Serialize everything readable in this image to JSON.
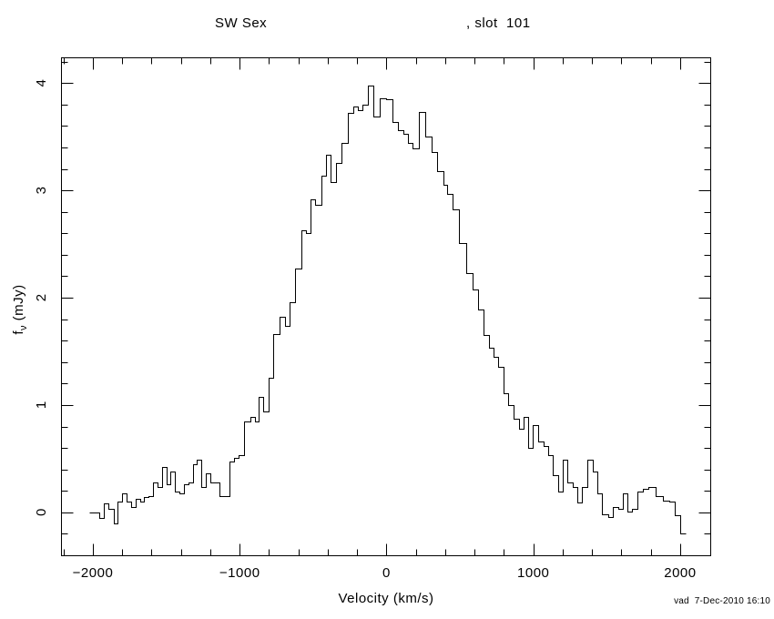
{
  "title": {
    "object": "SW Sex",
    "slot": ", slot  101"
  },
  "stamp": "vad  7-Dec-2010 16:10",
  "axes": {
    "xlabel": "Velocity (km/s)",
    "ylabel_f": "f",
    "ylabel_sub": "ν",
    "ylabel_unit": " (mJy)"
  },
  "chart_data": {
    "type": "line",
    "style": "histogram-step",
    "title": "SW Sex , slot 101",
    "xlabel": "Velocity (km/s)",
    "ylabel": "f_ν (mJy)",
    "line_color": "#000000",
    "background": "#ffffff",
    "grid": false,
    "legend": "none",
    "xlim": [
      -2217,
      2205
    ],
    "ylim": [
      -0.4,
      4.24
    ],
    "x_major_ticks": [
      -2000,
      -1000,
      0,
      1000,
      2000
    ],
    "x_tick_labels": [
      "−2000",
      "−1000",
      "0",
      "1000",
      "2000"
    ],
    "x_minor_step": 200,
    "y_major_ticks": [
      0,
      1,
      2,
      3,
      4
    ],
    "y_tick_labels": [
      "0",
      "1",
      "2",
      "3",
      "4"
    ],
    "y_minor_step": 0.2,
    "x": [
      -2010,
      -1975,
      -1940,
      -1910,
      -1875,
      -1845,
      -1815,
      -1785,
      -1755,
      -1725,
      -1695,
      -1665,
      -1635,
      -1605,
      -1575,
      -1545,
      -1515,
      -1485,
      -1455,
      -1425,
      -1395,
      -1365,
      -1335,
      -1305,
      -1275,
      -1245,
      -1215,
      -1185,
      -1155,
      -1125,
      -1090,
      -1055,
      -1025,
      -990,
      -950,
      -910,
      -885,
      -855,
      -820,
      -790,
      -750,
      -710,
      -675,
      -640,
      -600,
      -565,
      -535,
      -505,
      -465,
      -425,
      -395,
      -365,
      -325,
      -285,
      -245,
      -210,
      -175,
      -150,
      -110,
      -65,
      -25,
      15,
      60,
      100,
      130,
      160,
      200,
      245,
      285,
      325,
      370,
      400,
      430,
      470,
      520,
      565,
      605,
      640,
      685,
      715,
      740,
      780,
      815,
      845,
      880,
      920,
      948,
      980,
      1015,
      1050,
      1085,
      1115,
      1155,
      1185,
      1215,
      1250,
      1283,
      1313,
      1350,
      1388,
      1420,
      1450,
      1490,
      1528,
      1560,
      1595,
      1625,
      1655,
      1690,
      1730,
      1765,
      1800,
      1860,
      1905,
      1945,
      1985,
      2020
    ],
    "y": [
      0.0,
      0.0,
      -0.05,
      0.08,
      0.03,
      -0.1,
      0.1,
      0.18,
      0.1,
      0.05,
      0.13,
      0.1,
      0.14,
      0.15,
      0.28,
      0.24,
      0.42,
      0.26,
      0.38,
      0.19,
      0.18,
      0.26,
      0.28,
      0.45,
      0.49,
      0.24,
      0.36,
      0.28,
      0.28,
      0.15,
      0.15,
      0.47,
      0.51,
      0.53,
      0.85,
      0.89,
      0.85,
      1.08,
      0.94,
      1.25,
      1.66,
      1.82,
      1.74,
      1.96,
      2.27,
      2.63,
      2.6,
      2.92,
      2.87,
      3.14,
      3.33,
      3.08,
      3.26,
      3.44,
      3.72,
      3.78,
      3.75,
      3.8,
      3.98,
      3.69,
      3.86,
      3.85,
      3.64,
      3.56,
      3.53,
      3.44,
      3.39,
      3.73,
      3.5,
      3.36,
      3.18,
      3.05,
      2.97,
      2.82,
      2.51,
      2.23,
      2.08,
      1.89,
      1.65,
      1.53,
      1.45,
      1.36,
      1.11,
      1.0,
      0.87,
      0.78,
      0.89,
      0.6,
      0.81,
      0.66,
      0.62,
      0.53,
      0.35,
      0.19,
      0.49,
      0.28,
      0.24,
      0.09,
      0.24,
      0.49,
      0.38,
      0.18,
      -0.02,
      -0.04,
      0.05,
      0.03,
      0.18,
      0.01,
      0.03,
      0.19,
      0.22,
      0.24,
      0.15,
      0.11,
      0.1,
      -0.03,
      -0.2
    ]
  }
}
